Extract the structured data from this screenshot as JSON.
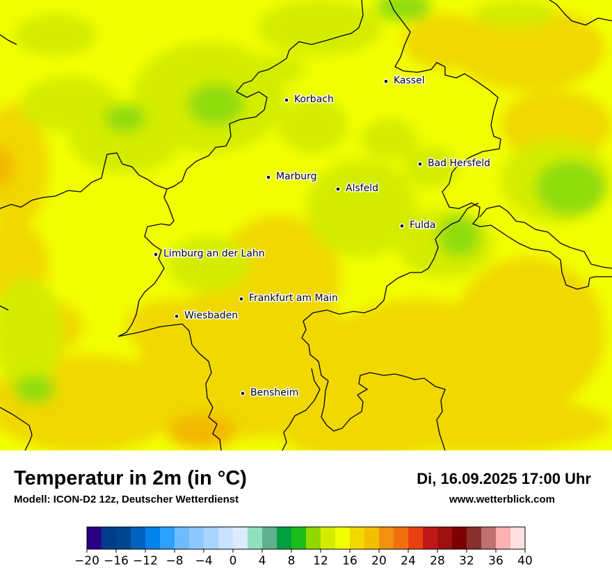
{
  "map": {
    "cities": [
      {
        "name": "Kassel"
      },
      {
        "name": "Korbach"
      },
      {
        "name": "Bad Hersfeld"
      },
      {
        "name": "Marburg"
      },
      {
        "name": "Alsfeld"
      },
      {
        "name": "Fulda"
      },
      {
        "name": "Limburg an der Lahn"
      },
      {
        "name": "Frankfurt am Main"
      },
      {
        "name": "Wiesbaden"
      },
      {
        "name": "Bensheim"
      }
    ],
    "colors": {
      "base_yellow": "#f2ff00",
      "yellow_green": "#d4ec00",
      "green": "#8fdc10",
      "orange_yellow": "#f0d800",
      "orange": "#f2b800",
      "border": "#000000"
    }
  },
  "footer": {
    "title": "Temperatur in 2m (in °C)",
    "model": "Modell: ICON-D2 12z, Deutscher Wetterdienst",
    "datetime": "Di, 16.09.2025 17:00 Uhr",
    "website": "www.wetterblick.com"
  },
  "legend": {
    "ticks": [
      "−20",
      "−16",
      "−12",
      "−8",
      "−4",
      "0",
      "4",
      "8",
      "12",
      "16",
      "20",
      "24",
      "28",
      "32",
      "36",
      "40"
    ],
    "colors": [
      "#2a0083",
      "#003c8c",
      "#00468c",
      "#0062c0",
      "#0082e8",
      "#2ea0ff",
      "#6ebcff",
      "#8cc8ff",
      "#a8d4ff",
      "#c8e2ff",
      "#dcecff",
      "#90e0c0",
      "#60b090",
      "#00a040",
      "#1cbc1c",
      "#90d800",
      "#d4ec00",
      "#f2ff00",
      "#f2d800",
      "#f2c000",
      "#f29010",
      "#f07010",
      "#e84010",
      "#c01818",
      "#a01010",
      "#7c0000",
      "#883030",
      "#c07070",
      "#ffb0b0",
      "#ffe0e0"
    ]
  }
}
